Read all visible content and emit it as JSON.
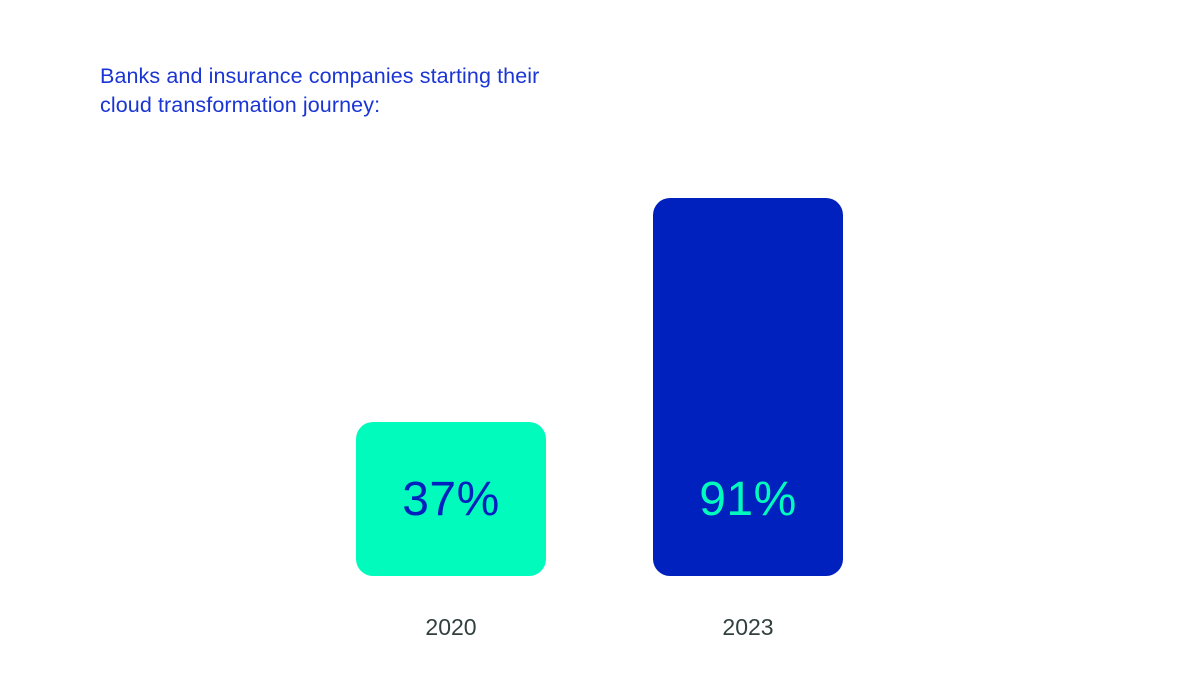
{
  "title": "Banks and insurance companies starting their cloud transformation journey:",
  "colors": {
    "title_blue": "#1a35d4",
    "mint": "#00fbbd",
    "deep_blue": "#0021bd",
    "year_label": "#31403e",
    "background": "#ffffff"
  },
  "chart_data": {
    "type": "bar",
    "title": "Banks and insurance companies starting their cloud transformation journey:",
    "categories": [
      "2020",
      "2023"
    ],
    "values": [
      37,
      91
    ],
    "value_labels": [
      "37%",
      "91%"
    ],
    "series_colors": [
      "#00fbbd",
      "#0021bd"
    ],
    "value_text_colors": [
      "#0021bd",
      "#00fbbd"
    ],
    "xlabel": "",
    "ylabel": "",
    "ylim": [
      0,
      100
    ],
    "grid": false,
    "legend": false,
    "orientation": "vertical",
    "value_label_position": "inside-bottom"
  }
}
